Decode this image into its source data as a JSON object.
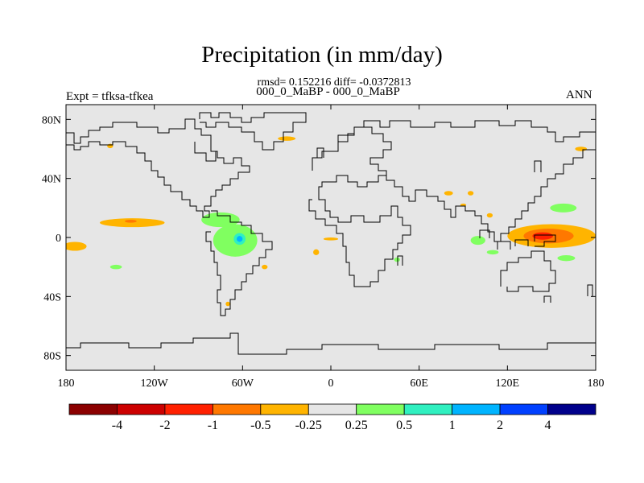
{
  "chart_data": {
    "type": "contour-map",
    "title": "Precipitation (in mm/day)",
    "stats": "rmsd= 0.152216 diff= -0.0372813",
    "period_label": "000_0_MaBP - 000_0_MaBP",
    "experiment_label": "Expt = tfksa-tfkea",
    "season_label": "ANN",
    "lon_range": [
      -180,
      180
    ],
    "lat_range": [
      -90,
      90
    ],
    "x_ticks": [
      {
        "value": -180,
        "label": "180"
      },
      {
        "value": -120,
        "label": "120W"
      },
      {
        "value": -60,
        "label": "60W"
      },
      {
        "value": 0,
        "label": "0"
      },
      {
        "value": 60,
        "label": "60E"
      },
      {
        "value": 120,
        "label": "120E"
      },
      {
        "value": 180,
        "label": "180"
      }
    ],
    "y_ticks": [
      {
        "value": 80,
        "label": "80N"
      },
      {
        "value": 40,
        "label": "40N"
      },
      {
        "value": 0,
        "label": "0"
      },
      {
        "value": -40,
        "label": "40S"
      },
      {
        "value": -80,
        "label": "80S"
      }
    ],
    "colorbar": {
      "colors": [
        "#8b0000",
        "#cc0000",
        "#ff2000",
        "#ff7800",
        "#ffb400",
        "#e6e6e6",
        "#80ff60",
        "#30f0c0",
        "#00b4ff",
        "#0040ff",
        "#00008b"
      ],
      "labels": [
        "-4",
        "-2",
        "-1",
        "-0.5",
        "-0.25",
        "0.25",
        "0.5",
        "1",
        "2",
        "4"
      ]
    },
    "background_color": "#e6e6e6",
    "anomaly_regions": [
      {
        "name": "central-pacific-north-dry",
        "level": "-0.25",
        "color": "#ffb400",
        "lon": -135,
        "lat": 10,
        "rlon": 22,
        "rlat": 3
      },
      {
        "name": "central-pacific-north-core",
        "level": "-0.5",
        "color": "#ff7800",
        "lon": -136,
        "lat": 11,
        "rlon": 4,
        "rlat": 1
      },
      {
        "name": "east-pacific-south-dry",
        "level": "-0.25",
        "color": "#ffb400",
        "lon": -174,
        "lat": -6,
        "rlon": 8,
        "rlat": 3
      },
      {
        "name": "central-america-wet",
        "level": "0.25",
        "color": "#80ff60",
        "lon": -75,
        "lat": 12,
        "rlon": 13,
        "rlat": 5
      },
      {
        "name": "amazon-wet",
        "level": "0.25",
        "color": "#80ff60",
        "lon": -65,
        "lat": -2,
        "rlon": 15,
        "rlat": 11
      },
      {
        "name": "amazon-wet-core",
        "level": "1",
        "color": "#30f0c0",
        "lon": -62,
        "lat": -1,
        "rlon": 4,
        "rlat": 4
      },
      {
        "name": "amazon-wet-peak",
        "level": "2",
        "color": "#00b4ff",
        "lon": -62,
        "lat": -1,
        "rlon": 2,
        "rlat": 2
      },
      {
        "name": "south-pacific-wet",
        "level": "0.25",
        "color": "#80ff60",
        "lon": -146,
        "lat": -20,
        "rlon": 4,
        "rlat": 1.5
      },
      {
        "name": "west-pacific-dry",
        "level": "-0.25",
        "color": "#ffb400",
        "lon": 150,
        "lat": 1,
        "rlon": 30,
        "rlat": 8
      },
      {
        "name": "west-pacific-dry-mid",
        "level": "-0.5",
        "color": "#ff7800",
        "lon": 148,
        "lat": 1,
        "rlon": 17,
        "rlat": 5
      },
      {
        "name": "west-pacific-dry-core",
        "level": "-1",
        "color": "#ff2000",
        "lon": 144,
        "lat": 1,
        "rlon": 7,
        "rlat": 2.5
      },
      {
        "name": "nw-pacific-wet",
        "level": "0.25",
        "color": "#80ff60",
        "lon": 158,
        "lat": 20,
        "rlon": 9,
        "rlat": 3
      },
      {
        "name": "south-pacific-convergence-wet",
        "level": "0.25",
        "color": "#80ff60",
        "lon": 160,
        "lat": -14,
        "rlon": 6,
        "rlat": 2
      },
      {
        "name": "indian-ocean-wet",
        "level": "0.25",
        "color": "#80ff60",
        "lon": 100,
        "lat": -2,
        "rlon": 5,
        "rlat": 3
      },
      {
        "name": "sumatra-wet",
        "level": "0.25",
        "color": "#80ff60",
        "lon": 110,
        "lat": -10,
        "rlon": 4,
        "rlat": 1.5
      },
      {
        "name": "asia-dry-1",
        "level": "-0.25",
        "color": "#ffb400",
        "lon": 80,
        "lat": 30,
        "rlon": 3,
        "rlat": 1.5
      },
      {
        "name": "asia-dry-2",
        "level": "-0.25",
        "color": "#ffb400",
        "lon": 95,
        "lat": 30,
        "rlon": 2,
        "rlat": 1.5
      },
      {
        "name": "asia-dry-3",
        "level": "-0.25",
        "color": "#ffb400",
        "lon": 108,
        "lat": 15,
        "rlon": 2,
        "rlat": 1.5
      },
      {
        "name": "asia-dry-4",
        "level": "-0.25",
        "color": "#ffb400",
        "lon": 90,
        "lat": 22,
        "rlon": 2,
        "rlat": 1
      },
      {
        "name": "arctic-dry",
        "level": "-0.25",
        "color": "#ffb400",
        "lon": 170,
        "lat": 60,
        "rlon": 4,
        "rlat": 1.5
      },
      {
        "name": "north-atlantic-dry",
        "level": "-0.25",
        "color": "#ffb400",
        "lon": -30,
        "lat": 67,
        "rlon": 6,
        "rlat": 1.5
      },
      {
        "name": "alaska-dry",
        "level": "-0.25",
        "color": "#ffb400",
        "lon": -150,
        "lat": 62,
        "rlon": 2,
        "rlat": 1.5
      },
      {
        "name": "gulf-guinea-dry",
        "level": "-0.25",
        "color": "#ffb400",
        "lon": 0,
        "lat": -1,
        "rlon": 5,
        "rlat": 1
      },
      {
        "name": "south-atlantic-dry",
        "level": "-0.25",
        "color": "#ffb400",
        "lon": -10,
        "lat": -10,
        "rlon": 2,
        "rlat": 2
      },
      {
        "name": "madagascar-wet",
        "level": "0.25",
        "color": "#80ff60",
        "lon": 45,
        "lat": -15,
        "rlon": 2,
        "rlat": 1.5
      },
      {
        "name": "patagonia-dry",
        "level": "-0.25",
        "color": "#ffb400",
        "lon": -70,
        "lat": -45,
        "rlon": 1.5,
        "rlat": 1.5
      },
      {
        "name": "atlantic-dry",
        "level": "-0.25",
        "color": "#ffb400",
        "lon": -45,
        "lat": -20,
        "rlon": 2,
        "rlat": 1.5
      }
    ]
  }
}
